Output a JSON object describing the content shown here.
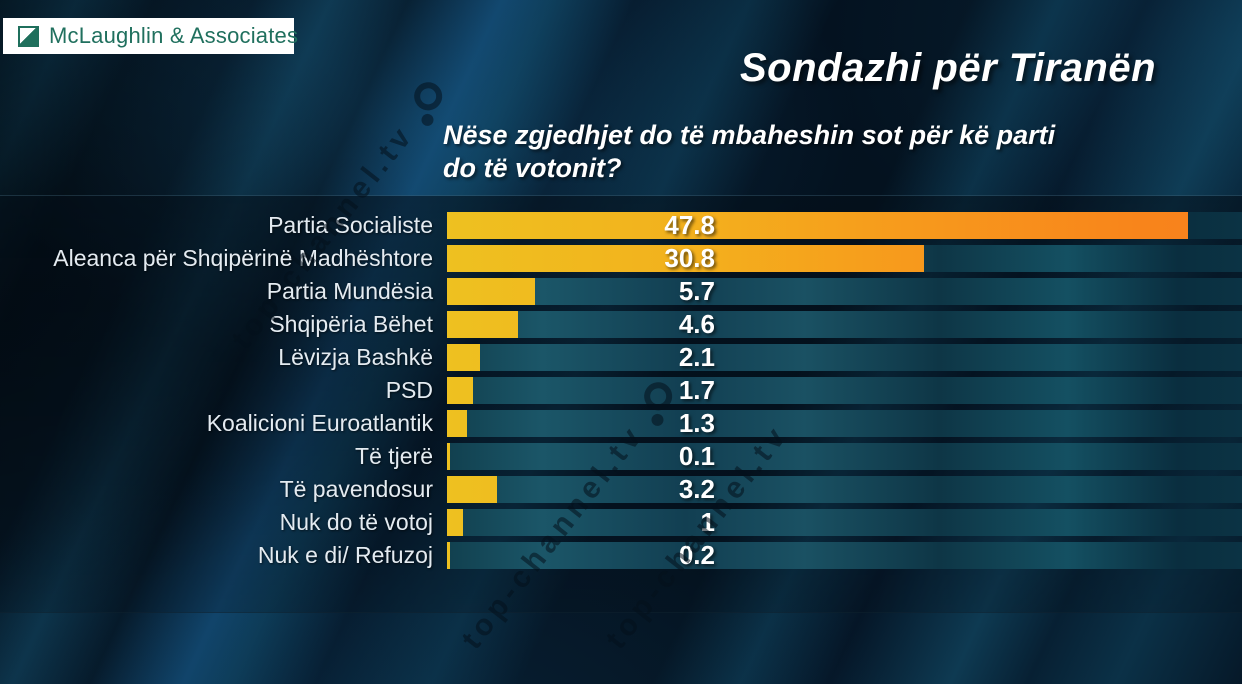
{
  "brand": {
    "name": "McLaughlin & Associates"
  },
  "header": {
    "title": "Sondazhi për Tiranën",
    "question_line1": "Nëse zgjedhjet do të mbaheshin sot për kë parti",
    "question_line2": "do të votonit?"
  },
  "watermark": {
    "text": "top-channel.tv"
  },
  "chart_data": {
    "type": "bar",
    "orientation": "horizontal",
    "title": "Sondazhi për Tiranën",
    "question": "Nëse zgjedhjet do të mbaheshin sot për kë parti do të votonit?",
    "categories": [
      "Partia Socialiste",
      "Aleanca për Shqipërinë Madhështore",
      "Partia Mundësia",
      "Shqipëria Bëhet",
      "Lëvizja Bashkë",
      "PSD",
      "Koalicioni Euroatlantik",
      "Të tjerë",
      "Të pavendosur",
      "Nuk do të votoj",
      "Nuk e di/ Refuzoj"
    ],
    "values": [
      47.8,
      30.8,
      5.7,
      4.6,
      2.1,
      1.7,
      1.3,
      0.1,
      3.2,
      1,
      0.2
    ],
    "value_labels": [
      "47.8",
      "30.8",
      "5.7",
      "4.6",
      "2.1",
      "1.7",
      "1.3",
      "0.1",
      "3.2",
      "1",
      "0.2"
    ],
    "unit": "percent",
    "xlim": [
      0,
      51
    ],
    "grid": false,
    "legend": false,
    "colors": {
      "bar_gradient_start": "#eec120",
      "bar_gradient_end": "#f8821c",
      "bar_small": "#f2c51d",
      "track_teal": "#14485c",
      "background_navy": "#03111c",
      "value_text": "#ffffff",
      "label_text": "#e4ebf1",
      "logo_green": "#1f6f5c"
    }
  }
}
